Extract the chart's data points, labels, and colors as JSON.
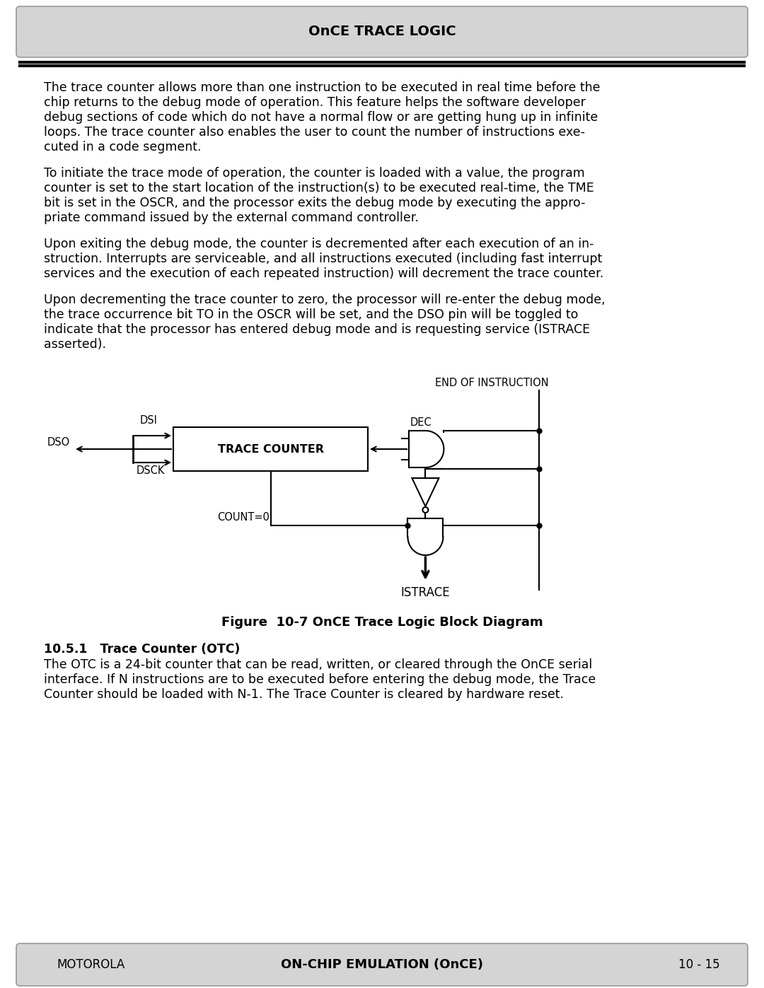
{
  "header_text": "OnCE TRACE LOGIC",
  "footer_left": "MOTOROLA",
  "footer_center": "ON-CHIP EMULATION (OnCE)",
  "footer_right": "10 - 15",
  "bg_color": "#ffffff",
  "header_bg": "#d4d4d4",
  "footer_bg": "#d4d4d4",
  "para1_lines": [
    "The trace counter allows more than one instruction to be executed in real time before the",
    "chip returns to the debug mode of operation. This feature helps the software developer",
    "debug sections of code which do not have a normal flow or are getting hung up in infinite",
    "loops. The trace counter also enables the user to count the number of instructions exe-",
    "cuted in a code segment."
  ],
  "para2_lines": [
    "To initiate the trace mode of operation, the counter is loaded with a value, the program",
    "counter is set to the start location of the instruction(s) to be executed real-time, the TME",
    "bit is set in the OSCR, and the processor exits the debug mode by executing the appro-",
    "priate command issued by the external command controller."
  ],
  "para3_lines": [
    "Upon exiting the debug mode, the counter is decremented after each execution of an in-",
    "struction. Interrupts are serviceable, and all instructions executed (including fast interrupt",
    "services and the execution of each repeated instruction) will decrement the trace counter."
  ],
  "para4_lines": [
    "Upon decrementing the trace counter to zero, the processor will re-enter the debug mode,",
    "the trace occurrence bit TO in the OSCR will be set, and the DSO pin will be toggled to",
    "indicate that the processor has entered debug mode and is requesting service (ISTRACE",
    "asserted)."
  ],
  "figure_caption": "Figure  10-7 OnCE Trace Logic Block Diagram",
  "section_title": "10.5.1   Trace Counter (OTC)",
  "section_para_lines": [
    "The OTC is a 24-bit counter that can be read, written, or cleared through the OnCE serial",
    "interface. If N instructions are to be executed before entering the debug mode, the Trace",
    "Counter should be loaded with N-1. The Trace Counter is cleared by hardware reset."
  ]
}
